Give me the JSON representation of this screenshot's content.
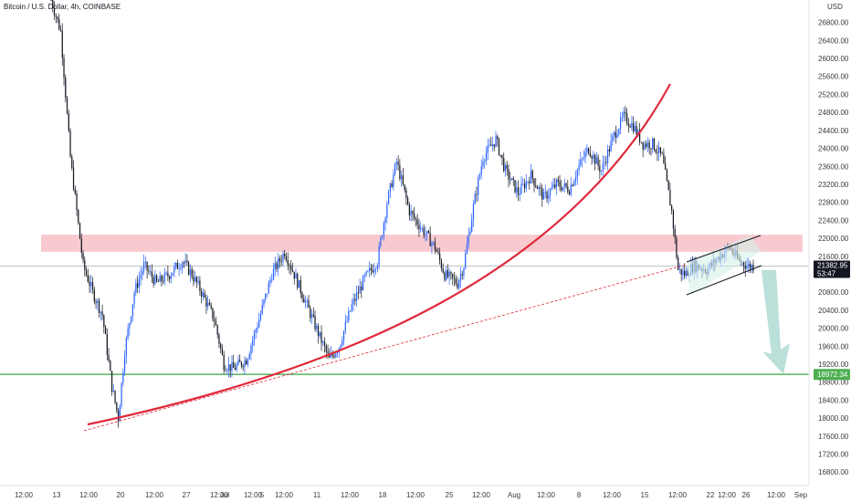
{
  "chart_data": {
    "type": "candlestick",
    "title": "Bitcoin / U.S. Dollar, 4h, COINBASE",
    "currency_label": "USD",
    "y_ticks": [
      16800,
      17200,
      17600,
      18000,
      18400,
      18800,
      19200,
      19600,
      20000,
      20400,
      20800,
      21200,
      21600,
      22000,
      22400,
      22800,
      23200,
      23600,
      24000,
      24400,
      24800,
      25200,
      25600,
      26000,
      26400,
      26800
    ],
    "y_tick_labels": [
      "16800.00",
      "17200.00",
      "17600.00",
      "18000.00",
      "18400.00",
      "18800.00",
      "19200.00",
      "19600.00",
      "20000.00",
      "20400.00",
      "20800.00",
      "21200.00",
      "21600.00",
      "22000.00",
      "22400.00",
      "22800.00",
      "23200.00",
      "23600.00",
      "24000.00",
      "24400.00",
      "24800.00",
      "25200.00",
      "25600.00",
      "26000.00",
      "26400.00",
      "26800.00"
    ],
    "ylim": [
      16500,
      27300
    ],
    "x_tick_labels": [
      "12:00",
      "13",
      "12:00",
      "20",
      "12:00",
      "27",
      "12:00",
      "Jul",
      "12:00",
      "5",
      "12:00",
      "11",
      "12:00",
      "18",
      "12:00",
      "25",
      "12:00",
      "Aug",
      "12:00",
      "8",
      "12:00",
      "15",
      "12:00",
      "22",
      "12:00",
      "26",
      "12:00",
      "Sep"
    ],
    "current_price": {
      "label": "21382.95",
      "countdown": "53:47",
      "value": 21382.95
    },
    "support_line": {
      "label": "18972.34",
      "value": 18972.34,
      "color": "#4caf50"
    },
    "resistance_zone": {
      "low": 21700,
      "high": 22080,
      "color": "#f7c1c7"
    },
    "colors": {
      "up": "#2962ff",
      "down": "#131722",
      "curve": "#e0293a",
      "arrow": "#a7d8cf"
    },
    "anchors": [
      [
        0,
        27300
      ],
      [
        6,
        26600
      ],
      [
        12,
        23800
      ],
      [
        20,
        21400
      ],
      [
        26,
        20800
      ],
      [
        32,
        20300
      ],
      [
        38,
        18700
      ],
      [
        42,
        18000
      ],
      [
        46,
        19500
      ],
      [
        52,
        20800
      ],
      [
        58,
        21400
      ],
      [
        66,
        21000
      ],
      [
        74,
        21200
      ],
      [
        82,
        21500
      ],
      [
        88,
        21200
      ],
      [
        94,
        20800
      ],
      [
        102,
        20200
      ],
      [
        108,
        19200
      ],
      [
        114,
        19100
      ],
      [
        122,
        19300
      ],
      [
        130,
        20200
      ],
      [
        138,
        21200
      ],
      [
        146,
        21700
      ],
      [
        152,
        21200
      ],
      [
        160,
        20500
      ],
      [
        168,
        19800
      ],
      [
        174,
        19300
      ],
      [
        180,
        19600
      ],
      [
        188,
        20500
      ],
      [
        196,
        21100
      ],
      [
        204,
        21500
      ],
      [
        210,
        22800
      ],
      [
        216,
        23700
      ],
      [
        224,
        22600
      ],
      [
        232,
        22200
      ],
      [
        240,
        21800
      ],
      [
        246,
        21200
      ],
      [
        254,
        21000
      ],
      [
        258,
        21400
      ],
      [
        264,
        22700
      ],
      [
        270,
        23800
      ],
      [
        278,
        24200
      ],
      [
        284,
        23500
      ],
      [
        292,
        23000
      ],
      [
        300,
        23400
      ],
      [
        308,
        22900
      ],
      [
        316,
        23200
      ],
      [
        324,
        23100
      ],
      [
        330,
        23600
      ],
      [
        336,
        24000
      ],
      [
        344,
        23500
      ],
      [
        352,
        24300
      ],
      [
        358,
        24700
      ],
      [
        364,
        24500
      ],
      [
        370,
        24100
      ],
      [
        376,
        24100
      ],
      [
        382,
        23800
      ],
      [
        388,
        22600
      ],
      [
        392,
        21300
      ],
      [
        396,
        21200
      ],
      [
        402,
        21400
      ],
      [
        410,
        21300
      ],
      [
        418,
        21600
      ],
      [
        424,
        21800
      ],
      [
        430,
        21500
      ],
      [
        436,
        21383
      ]
    ]
  }
}
